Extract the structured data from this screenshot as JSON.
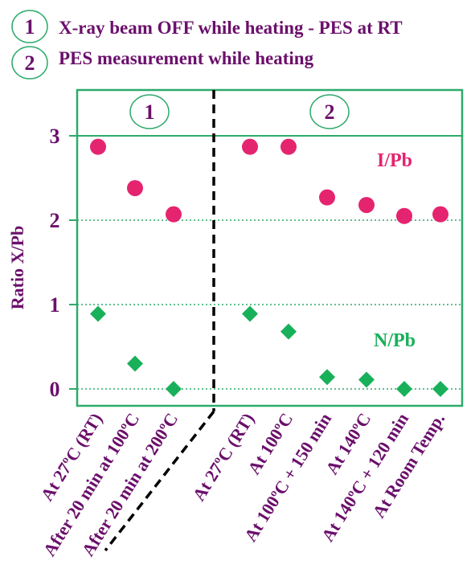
{
  "legend": [
    {
      "marker": "1",
      "text": "X-ray beam OFF while heating - PES at RT"
    },
    {
      "marker": "2",
      "text": "PES measurement while heating"
    }
  ],
  "colors": {
    "text": "#6b0f6b",
    "frame": "#2daa6b",
    "i_series": "#e5246f",
    "n_series": "#19b05a",
    "divider": "#000000"
  },
  "chart_data": {
    "type": "scatter",
    "ylabel": "Ratio X/Pb",
    "ylim": [
      -0.2,
      3.5
    ],
    "yticks": [
      0,
      1,
      2,
      3
    ],
    "grid": "horizontal dotted at 0, 1, 2; solid at 3",
    "categories": [
      "At 27ºC (RT)",
      "After 20 min at 100ºC",
      "After 20 min at 200ºC",
      "At 27ºC (RT)",
      "At 100ºC",
      "At 100ºC + 150 min",
      "At 140ºC",
      "At 140ºC + 120 min",
      "At Room Temp."
    ],
    "panels": [
      {
        "label": "1",
        "categories": [
          0,
          1,
          2
        ]
      },
      {
        "label": "2",
        "categories": [
          3,
          4,
          5,
          6,
          7,
          8
        ]
      }
    ],
    "series": [
      {
        "name": "I/Pb",
        "marker": "circle",
        "values": [
          2.87,
          2.38,
          2.07,
          2.87,
          2.87,
          2.27,
          2.18,
          2.05,
          2.07
        ]
      },
      {
        "name": "N/Pb",
        "marker": "diamond",
        "values": [
          0.89,
          0.3,
          0.0,
          0.89,
          0.68,
          0.14,
          0.11,
          0.0,
          0.0
        ]
      }
    ]
  }
}
